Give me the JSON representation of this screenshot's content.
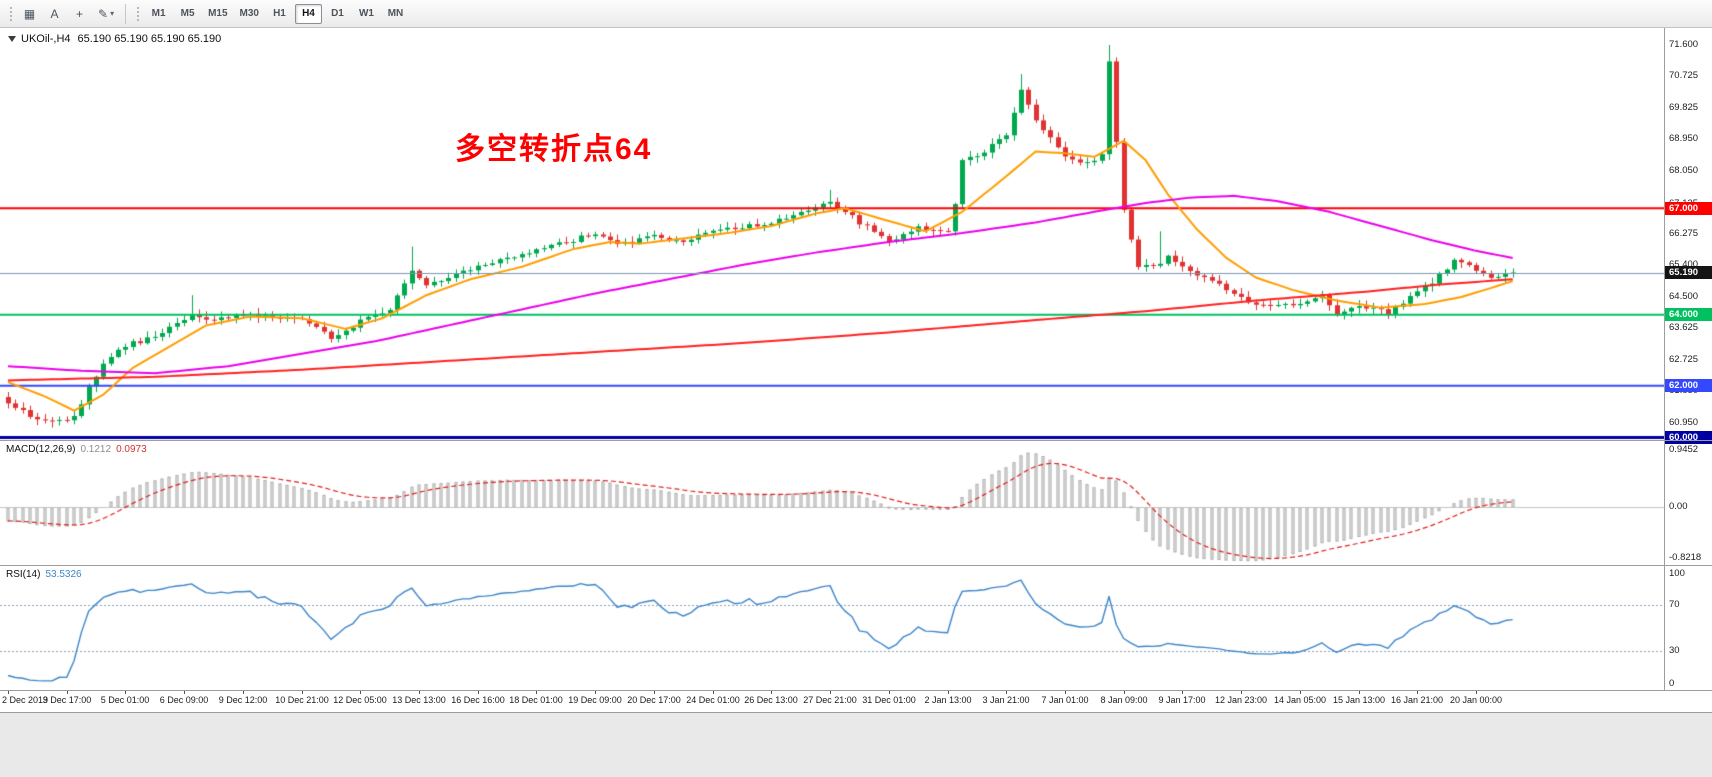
{
  "toolbar": {
    "icon_buttons": [
      {
        "name": "charts-grid-icon",
        "glyph": "▦"
      },
      {
        "name": "text-tool-icon",
        "glyph": "A"
      },
      {
        "name": "crosshair-icon",
        "glyph": "+"
      },
      {
        "name": "draw-tools-icon",
        "glyph": "✎",
        "dropdown": "▾"
      }
    ],
    "timeframes": [
      "M1",
      "M5",
      "M15",
      "M30",
      "H1",
      "H4",
      "D1",
      "W1",
      "MN"
    ],
    "active_timeframe": "H4"
  },
  "header": {
    "symbol_period": "UKOil-,H4",
    "ohlc": "65.190 65.190 65.190 65.190"
  },
  "annotation": {
    "text": "多空转折点64",
    "color": "#ff0000"
  },
  "chart_data": {
    "type": "candlestick",
    "symbol": "UKOil-",
    "timeframe": "H4",
    "title": "UKOil-,H4 65.190 65.190 65.190 65.190",
    "y_range": [
      60.47,
      72.08
    ],
    "y_axis_ticks": [
      "71.600",
      "70.725",
      "69.825",
      "68.950",
      "68.050",
      "67.125",
      "66.275",
      "65.400",
      "64.500",
      "63.625",
      "62.725",
      "61.850",
      "60.950"
    ],
    "x_labels": [
      "2 Dec 2019",
      "3 Dec 17:00",
      "5 Dec 01:00",
      "6 Dec 09:00",
      "9 Dec 12:00",
      "10 Dec 21:00",
      "12 Dec 05:00",
      "13 Dec 13:00",
      "16 Dec 16:00",
      "18 Dec 01:00",
      "19 Dec 09:00",
      "20 Dec 17:00",
      "24 Dec 01:00",
      "26 Dec 13:00",
      "27 Dec 21:00",
      "31 Dec 01:00",
      "2 Jan 13:00",
      "3 Jan 21:00",
      "7 Jan 01:00",
      "8 Jan 09:00",
      "9 Jan 17:00",
      "12 Jan 23:00",
      "14 Jan 05:00",
      "15 Jan 13:00",
      "16 Jan 21:00",
      "20 Jan 00:00"
    ],
    "candles_per_label": 8,
    "candles": {
      "count": 206,
      "up": "#00a84e",
      "down": "#e03232",
      "close_anchors": [
        [
          0,
          61.55
        ],
        [
          3,
          61.15
        ],
        [
          6,
          60.95
        ],
        [
          9,
          61.1
        ],
        [
          11,
          61.95
        ],
        [
          13,
          62.6
        ],
        [
          16,
          63.15
        ],
        [
          20,
          63.35
        ],
        [
          23,
          63.75
        ],
        [
          25,
          63.95
        ],
        [
          28,
          63.9
        ],
        [
          32,
          64.0
        ],
        [
          36,
          63.95
        ],
        [
          40,
          63.85
        ],
        [
          44,
          63.35
        ],
        [
          48,
          63.8
        ],
        [
          52,
          64.2
        ],
        [
          55,
          65.25
        ],
        [
          57,
          64.85
        ],
        [
          60,
          65.05
        ],
        [
          64,
          65.4
        ],
        [
          68,
          65.6
        ],
        [
          72,
          65.8
        ],
        [
          76,
          66.05
        ],
        [
          80,
          66.3
        ],
        [
          83,
          65.95
        ],
        [
          88,
          66.2
        ],
        [
          92,
          66.1
        ],
        [
          96,
          66.35
        ],
        [
          100,
          66.45
        ],
        [
          104,
          66.6
        ],
        [
          108,
          66.9
        ],
        [
          112,
          67.2
        ],
        [
          116,
          66.6
        ],
        [
          120,
          66.1
        ],
        [
          124,
          66.45
        ],
        [
          128,
          66.35
        ],
        [
          129,
          67.1
        ],
        [
          130,
          68.3
        ],
        [
          133,
          68.6
        ],
        [
          136,
          69.1
        ],
        [
          138,
          70.35
        ],
        [
          140,
          69.5
        ],
        [
          142,
          69.0
        ],
        [
          144,
          68.4
        ],
        [
          147,
          68.25
        ],
        [
          149,
          68.5
        ],
        [
          150,
          71.2
        ],
        [
          151,
          68.9
        ],
        [
          152,
          66.9
        ],
        [
          154,
          65.4
        ],
        [
          156,
          65.35
        ],
        [
          158,
          65.6
        ],
        [
          160,
          65.3
        ],
        [
          164,
          65.0
        ],
        [
          168,
          64.45
        ],
        [
          172,
          64.2
        ],
        [
          176,
          64.3
        ],
        [
          179,
          64.55
        ],
        [
          181,
          64.0
        ],
        [
          184,
          64.3
        ],
        [
          188,
          64.05
        ],
        [
          192,
          64.6
        ],
        [
          195,
          65.1
        ],
        [
          197,
          65.55
        ],
        [
          200,
          65.3
        ],
        [
          202,
          65.05
        ],
        [
          205,
          65.19
        ]
      ],
      "wick_overrides": [
        [
          6,
          "low",
          60.82
        ],
        [
          25,
          "high",
          64.55
        ],
        [
          55,
          "high",
          65.92
        ],
        [
          112,
          "high",
          67.52
        ],
        [
          138,
          "high",
          70.78
        ],
        [
          150,
          "high",
          71.6
        ],
        [
          157,
          "high",
          66.35
        ]
      ]
    },
    "moving_averages": [
      {
        "name": "ma-fast",
        "color": "#ff9d00",
        "points": [
          [
            0,
            62.1
          ],
          [
            5,
            61.7
          ],
          [
            9,
            61.3
          ],
          [
            13,
            61.75
          ],
          [
            17,
            62.5
          ],
          [
            22,
            63.1
          ],
          [
            27,
            63.7
          ],
          [
            33,
            63.95
          ],
          [
            40,
            63.9
          ],
          [
            46,
            63.6
          ],
          [
            51,
            63.9
          ],
          [
            57,
            64.55
          ],
          [
            63,
            65.0
          ],
          [
            70,
            65.35
          ],
          [
            77,
            65.85
          ],
          [
            82,
            66.05
          ],
          [
            86,
            66.0
          ],
          [
            92,
            66.15
          ],
          [
            98,
            66.3
          ],
          [
            104,
            66.5
          ],
          [
            110,
            66.85
          ],
          [
            114,
            67.0
          ],
          [
            119,
            66.7
          ],
          [
            125,
            66.35
          ],
          [
            130,
            66.9
          ],
          [
            136,
            67.9
          ],
          [
            140,
            68.6
          ],
          [
            144,
            68.55
          ],
          [
            148,
            68.45
          ],
          [
            152,
            68.9
          ],
          [
            155,
            68.35
          ],
          [
            158,
            67.4
          ],
          [
            162,
            66.4
          ],
          [
            166,
            65.6
          ],
          [
            170,
            65.05
          ],
          [
            175,
            64.7
          ],
          [
            181,
            64.4
          ],
          [
            187,
            64.2
          ],
          [
            193,
            64.3
          ],
          [
            198,
            64.5
          ],
          [
            202,
            64.75
          ],
          [
            205,
            64.95
          ]
        ]
      },
      {
        "name": "ma-medium",
        "color": "#ea00ea",
        "points": [
          [
            0,
            62.55
          ],
          [
            10,
            62.42
          ],
          [
            20,
            62.35
          ],
          [
            30,
            62.55
          ],
          [
            40,
            62.9
          ],
          [
            50,
            63.25
          ],
          [
            60,
            63.7
          ],
          [
            70,
            64.15
          ],
          [
            80,
            64.6
          ],
          [
            90,
            65.0
          ],
          [
            100,
            65.4
          ],
          [
            110,
            65.75
          ],
          [
            120,
            66.05
          ],
          [
            130,
            66.3
          ],
          [
            140,
            66.6
          ],
          [
            148,
            66.9
          ],
          [
            155,
            67.15
          ],
          [
            161,
            67.3
          ],
          [
            167,
            67.35
          ],
          [
            173,
            67.2
          ],
          [
            180,
            66.9
          ],
          [
            187,
            66.5
          ],
          [
            194,
            66.1
          ],
          [
            200,
            65.8
          ],
          [
            205,
            65.6
          ]
        ]
      },
      {
        "name": "ma-slow",
        "color": "#ff2020",
        "points": [
          [
            0,
            62.15
          ],
          [
            20,
            62.25
          ],
          [
            40,
            62.45
          ],
          [
            60,
            62.7
          ],
          [
            80,
            62.95
          ],
          [
            100,
            63.2
          ],
          [
            120,
            63.5
          ],
          [
            140,
            63.85
          ],
          [
            155,
            64.1
          ],
          [
            170,
            64.4
          ],
          [
            185,
            64.65
          ],
          [
            195,
            64.85
          ],
          [
            205,
            65.0
          ]
        ]
      }
    ],
    "horizontal_levels": [
      {
        "price": 67.0,
        "label": "67.000",
        "color": "#ff0000",
        "width": 2
      },
      {
        "price": 64.0,
        "label": "64.000",
        "color": "#00c060",
        "width": 2
      },
      {
        "price": 62.0,
        "label": "62.000",
        "color": "#3448ff",
        "width": 2
      },
      {
        "price": 60.0,
        "label": "60.000",
        "color": "#0000a0",
        "width": 3,
        "clamped": true
      }
    ],
    "current_price": {
      "value": 65.19,
      "label": "65.190",
      "line_color": "#7a9ab0",
      "tag_color": "#141414"
    },
    "indicators": {
      "macd": {
        "name_label": "MACD(12,26,9)",
        "hist_value": "0.1212",
        "signal_value": "0.0973",
        "scale_top": "0.9452",
        "scale_zero": "0.00",
        "scale_bottom": "-0.8218",
        "hist_fill": "#e6e6e6",
        "hist_stroke": "#b0b0b0",
        "signal_color": "#e02020"
      },
      "rsi": {
        "name_label": "RSI(14)",
        "value": "53.5326",
        "scale_labels": [
          "100",
          "70",
          "30",
          "0"
        ],
        "levels": [
          70,
          30
        ],
        "line_color": "#3d85c8",
        "level_color": "#8fa3b8"
      }
    }
  }
}
